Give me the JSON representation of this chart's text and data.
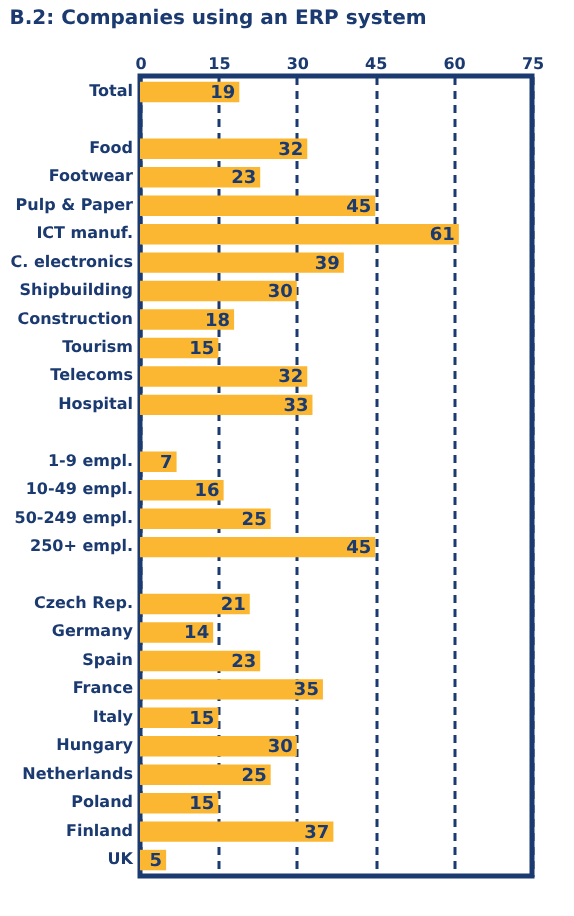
{
  "chart_data": {
    "type": "bar",
    "orientation": "horizontal",
    "title": "B.2: Companies using an ERP system",
    "categories": [
      "Total",
      null,
      "Food",
      "Footwear",
      "Pulp & Paper",
      "ICT manuf.",
      "C. electronics",
      "Shipbuilding",
      "Construction",
      "Tourism",
      "Telecoms",
      "Hospital",
      null,
      "1-9 empl.",
      "10-49 empl.",
      "50-249 empl.",
      "250+ empl.",
      null,
      "Czech Rep.",
      "Germany",
      "Spain",
      "France",
      "Italy",
      "Hungary",
      "Netherlands",
      "Poland",
      "Finland",
      "UK"
    ],
    "values": [
      19,
      null,
      32,
      23,
      45,
      61,
      39,
      30,
      18,
      15,
      32,
      33,
      null,
      7,
      16,
      25,
      45,
      null,
      21,
      14,
      23,
      35,
      15,
      30,
      25,
      15,
      37,
      5
    ],
    "color": "#fbb731",
    "xlim": [
      0,
      75
    ],
    "xticks": [
      0,
      15,
      30,
      45,
      60,
      75
    ],
    "grid": "x",
    "data_labels": true
  }
}
